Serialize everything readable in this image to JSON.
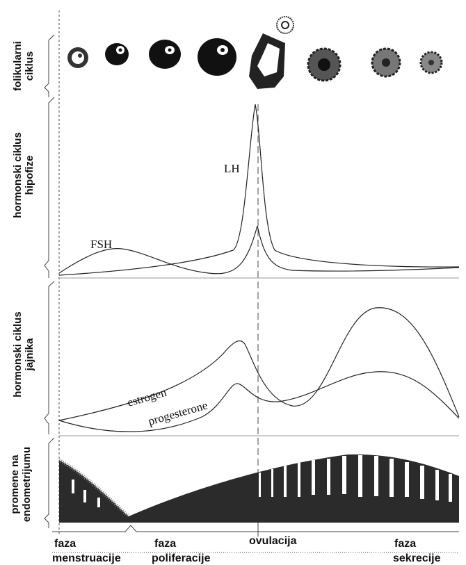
{
  "sections": [
    {
      "lines": [
        "folikularni",
        "ciklus"
      ]
    },
    {
      "lines": [
        "hormonski ciklus",
        "hipofize"
      ]
    },
    {
      "lines": [
        "hormonski ciklus",
        "jajnika"
      ]
    },
    {
      "lines": [
        "promene na",
        "endometrijumu"
      ]
    }
  ],
  "curve_labels": {
    "lh": "LH",
    "fsh": "FSH",
    "estrogen": "estrogen",
    "progesterone": "progesterone"
  },
  "phases": [
    {
      "lines": [
        "faza",
        "menstruacije"
      ]
    },
    {
      "lines": [
        "faza",
        "poliferacije"
      ]
    },
    {
      "lines": [
        "ovulacija"
      ]
    },
    {
      "lines": [
        "faza",
        "sekrecije"
      ]
    }
  ]
}
